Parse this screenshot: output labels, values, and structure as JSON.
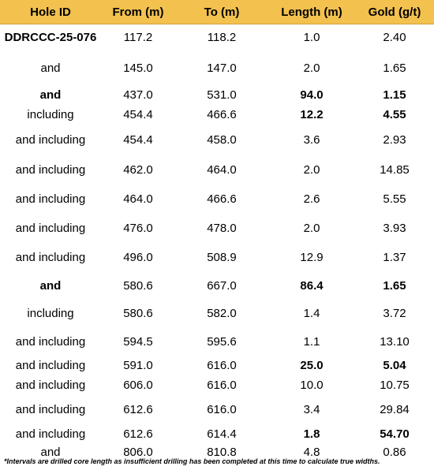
{
  "table": {
    "headers": [
      "Hole ID",
      "From (m)",
      "To (m)",
      "Length (m)",
      "Gold (g/t)"
    ],
    "rows": [
      {
        "hole": "DDRCCC-25-076",
        "from": "117.2",
        "to": "118.2",
        "length": "1.0",
        "gold": "2.40",
        "bold": [
          true,
          false,
          false,
          false,
          false
        ]
      },
      {
        "hole": "and",
        "from": "145.0",
        "to": "147.0",
        "length": "2.0",
        "gold": "1.65",
        "bold": [
          false,
          false,
          false,
          false,
          false
        ]
      },
      {
        "hole": "and",
        "from": "437.0",
        "to": "531.0",
        "length": "94.0",
        "gold": "1.15",
        "bold": [
          true,
          false,
          false,
          true,
          true
        ]
      },
      {
        "hole": "including",
        "from": "454.4",
        "to": "466.6",
        "length": "12.2",
        "gold": "4.55",
        "bold": [
          false,
          false,
          false,
          true,
          true
        ]
      },
      {
        "hole": "and including",
        "from": "454.4",
        "to": "458.0",
        "length": "3.6",
        "gold": "2.93",
        "bold": [
          false,
          false,
          false,
          false,
          false
        ]
      },
      {
        "hole": "and including",
        "from": "462.0",
        "to": "464.0",
        "length": "2.0",
        "gold": "14.85",
        "bold": [
          false,
          false,
          false,
          false,
          false
        ]
      },
      {
        "hole": "and including",
        "from": "464.0",
        "to": "466.6",
        "length": "2.6",
        "gold": "5.55",
        "bold": [
          false,
          false,
          false,
          false,
          false
        ]
      },
      {
        "hole": "and including",
        "from": "476.0",
        "to": "478.0",
        "length": "2.0",
        "gold": "3.93",
        "bold": [
          false,
          false,
          false,
          false,
          false
        ]
      },
      {
        "hole": "and including",
        "from": "496.0",
        "to": "508.9",
        "length": "12.9",
        "gold": "1.37",
        "bold": [
          false,
          false,
          false,
          false,
          false
        ]
      },
      {
        "hole": "and",
        "from": "580.6",
        "to": "667.0",
        "length": "86.4",
        "gold": "1.65",
        "bold": [
          true,
          false,
          false,
          true,
          true
        ]
      },
      {
        "hole": "including",
        "from": "580.6",
        "to": "582.0",
        "length": "1.4",
        "gold": "3.72",
        "bold": [
          false,
          false,
          false,
          false,
          false
        ]
      },
      {
        "hole": "and including",
        "from": "594.5",
        "to": "595.6",
        "length": "1.1",
        "gold": "13.10",
        "bold": [
          false,
          false,
          false,
          false,
          false
        ]
      },
      {
        "hole": "and including",
        "from": "591.0",
        "to": "616.0",
        "length": "25.0",
        "gold": "5.04",
        "bold": [
          false,
          false,
          false,
          true,
          true
        ]
      },
      {
        "hole": "and including",
        "from": "606.0",
        "to": "616.0",
        "length": "10.0",
        "gold": "10.75",
        "bold": [
          false,
          false,
          false,
          false,
          false
        ]
      },
      {
        "hole": "and including",
        "from": "612.6",
        "to": "616.0",
        "length": "3.4",
        "gold": "29.84",
        "bold": [
          false,
          false,
          false,
          false,
          false
        ]
      },
      {
        "hole": "and including",
        "from": "612.6",
        "to": "614.4",
        "length": "1.8",
        "gold": "54.70",
        "bold": [
          false,
          false,
          false,
          true,
          true
        ]
      },
      {
        "hole": "and",
        "from": "806.0",
        "to": "810.8",
        "length": "4.8",
        "gold": "0.86",
        "bold": [
          false,
          false,
          false,
          false,
          false
        ]
      }
    ]
  },
  "footnote": "*Intervals are drilled core length as insufficient drilling has been completed at this time to calculate true widths.",
  "colors": {
    "header_bg": "#f2c14e",
    "text": "#000000",
    "background": "#ffffff"
  }
}
